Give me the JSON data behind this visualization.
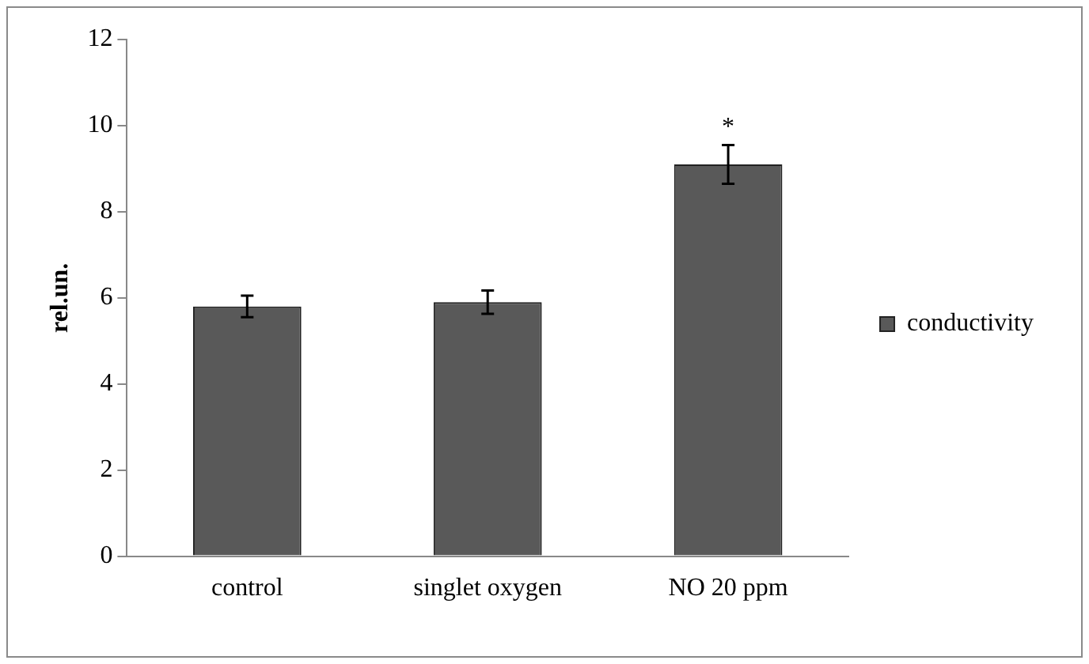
{
  "chart_data": {
    "type": "bar",
    "ylabel": "rel.un.",
    "categories": [
      "control",
      "singlet oxygen",
      "NO 20 ppm"
    ],
    "series": [
      {
        "name": "conductivity",
        "color": "#595959",
        "values": [
          5.8,
          5.9,
          9.1
        ],
        "errors": [
          0.25,
          0.27,
          0.45
        ]
      }
    ],
    "ylim": [
      0,
      12
    ],
    "yticks": [
      0,
      2,
      4,
      6,
      8,
      10,
      12
    ],
    "grid": false,
    "legend": "right",
    "annotations": [
      "*"
    ]
  }
}
